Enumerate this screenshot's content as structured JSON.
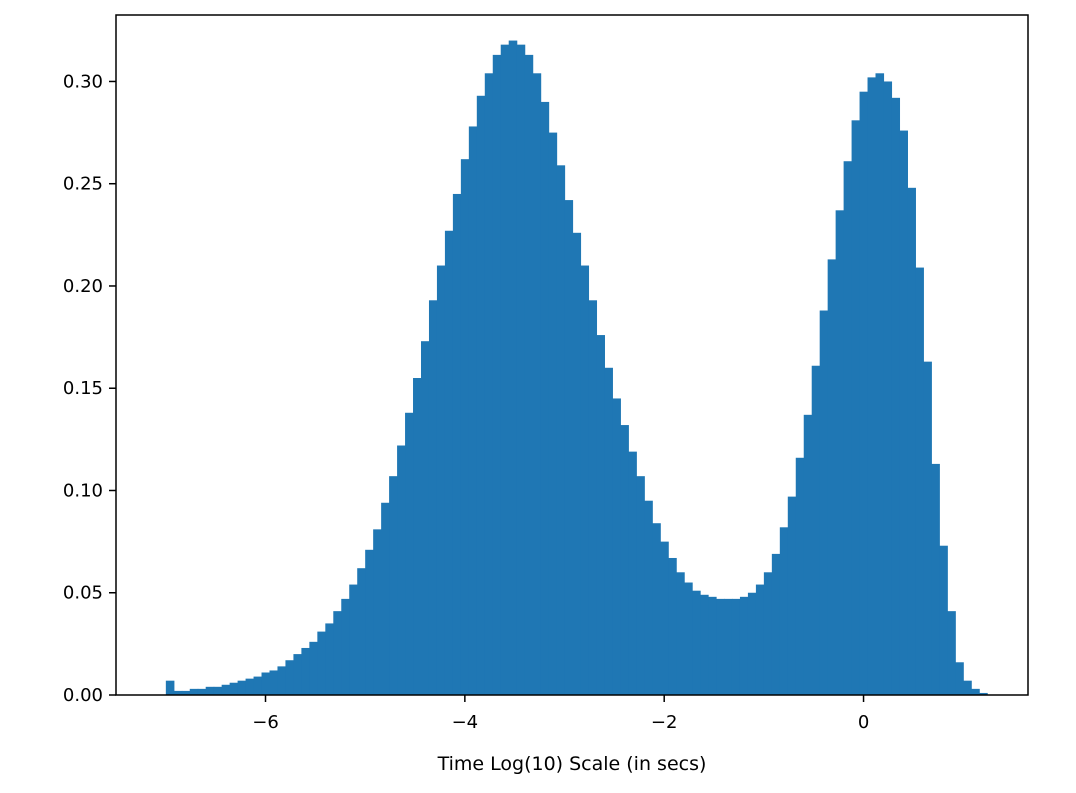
{
  "chart_data": {
    "type": "bar",
    "title": "",
    "xlabel": "Time Log(10) Scale (in secs)",
    "ylabel": "",
    "xlim": [
      -7.5,
      1.65
    ],
    "ylim": [
      0,
      0.3325
    ],
    "grid": false,
    "xticks": [
      -6,
      -4,
      -2,
      0
    ],
    "xtick_labels": [
      "−6",
      "−4",
      "−2",
      "0"
    ],
    "yticks": [
      0.0,
      0.05,
      0.1,
      0.15,
      0.2,
      0.25,
      0.3
    ],
    "ytick_labels": [
      "0.00",
      "0.05",
      "0.10",
      "0.15",
      "0.20",
      "0.25",
      "0.30"
    ],
    "bar_color": "#1f77b4",
    "bins": {
      "start": -7.0,
      "width": 0.08,
      "values": [
        0.007,
        0.002,
        0.002,
        0.003,
        0.003,
        0.004,
        0.004,
        0.005,
        0.006,
        0.007,
        0.008,
        0.009,
        0.011,
        0.012,
        0.014,
        0.017,
        0.02,
        0.023,
        0.026,
        0.031,
        0.035,
        0.041,
        0.047,
        0.054,
        0.062,
        0.071,
        0.081,
        0.094,
        0.107,
        0.122,
        0.138,
        0.155,
        0.173,
        0.193,
        0.21,
        0.227,
        0.245,
        0.262,
        0.278,
        0.293,
        0.304,
        0.313,
        0.318,
        0.32,
        0.318,
        0.313,
        0.304,
        0.29,
        0.275,
        0.259,
        0.242,
        0.226,
        0.21,
        0.193,
        0.176,
        0.16,
        0.145,
        0.132,
        0.119,
        0.107,
        0.095,
        0.084,
        0.075,
        0.067,
        0.06,
        0.055,
        0.051,
        0.049,
        0.048,
        0.047,
        0.047,
        0.047,
        0.048,
        0.05,
        0.054,
        0.06,
        0.069,
        0.082,
        0.097,
        0.116,
        0.137,
        0.161,
        0.188,
        0.213,
        0.237,
        0.261,
        0.281,
        0.295,
        0.302,
        0.304,
        0.3,
        0.292,
        0.276,
        0.248,
        0.209,
        0.163,
        0.113,
        0.073,
        0.041,
        0.016,
        0.007,
        0.003,
        0.001
      ]
    }
  }
}
